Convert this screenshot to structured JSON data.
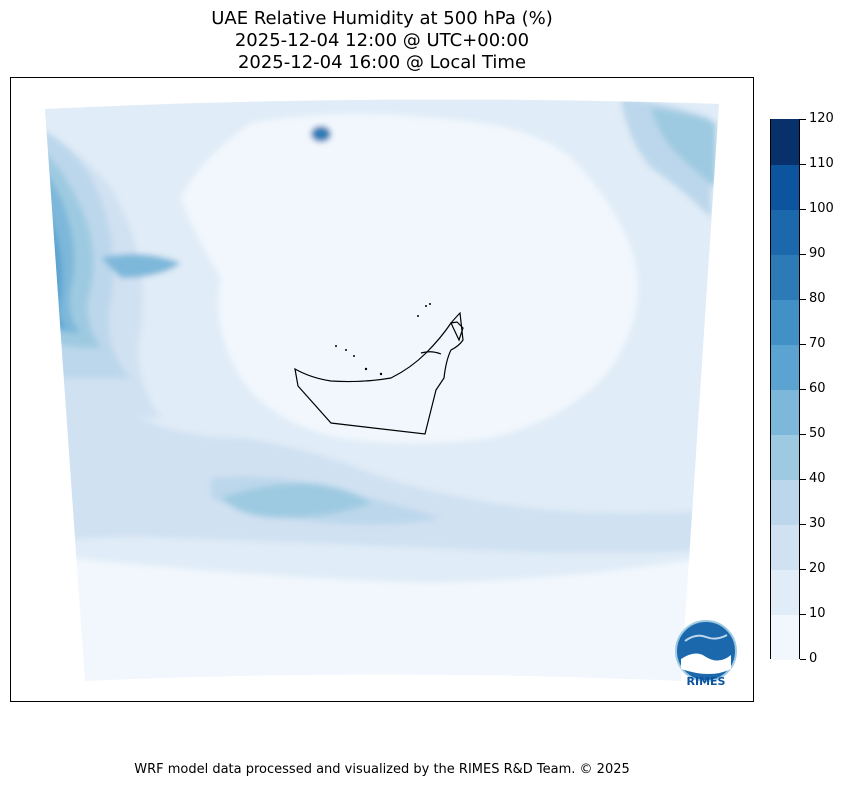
{
  "title": {
    "line1": "UAE Relative Humidity at 500 hPa (%)",
    "line2": "2025-12-04 12:00 @ UTC+00:00",
    "line3": "2025-12-04 16:00 @ Local Time"
  },
  "colorbar": {
    "ticks": [
      "0",
      "10",
      "20",
      "30",
      "40",
      "50",
      "60",
      "70",
      "80",
      "90",
      "100",
      "110",
      "120"
    ],
    "colors": [
      "#f2f7fd",
      "#e0ecf7",
      "#d0e1f2",
      "#bcd7eb",
      "#9ecae1",
      "#7db8da",
      "#5ba3d0",
      "#4291c6",
      "#2c7bb6",
      "#1c68ad",
      "#0c549e",
      "#08306b"
    ]
  },
  "logo": {
    "text": "RIMES"
  },
  "footer": {
    "text": "WRF model data processed and visualized by the RIMES R&D Team. © 2025"
  }
}
